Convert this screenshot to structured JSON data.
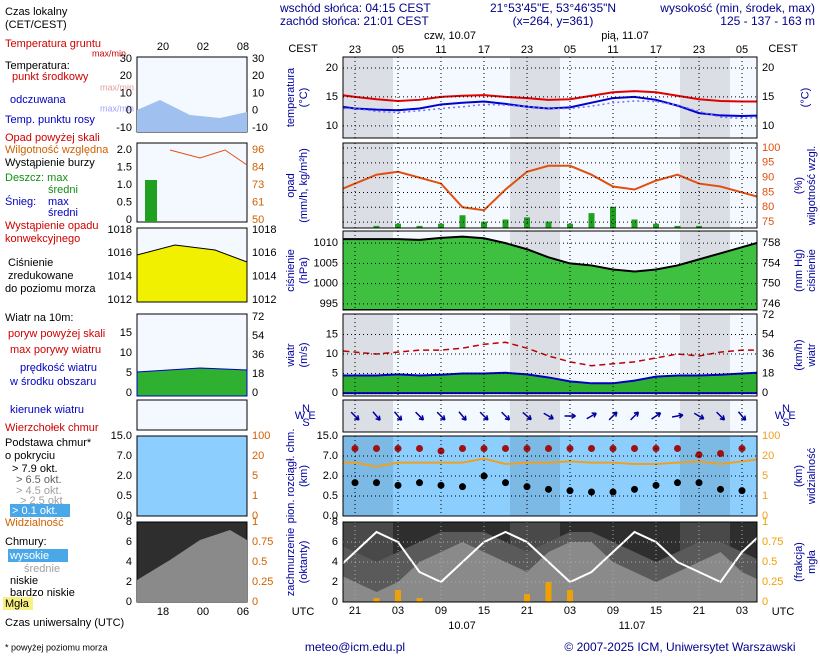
{
  "header": {
    "sunrise": "wschód słońca: 04:15 CEST",
    "sunset": "zachód słońca: 21:01 CEST",
    "coords": "21°53'45\"E, 53°46'35\"N",
    "grid": "(x=264, y=361)",
    "elev_title": "wysokość (min, środek, max)",
    "elev": "125 - 137 - 163 m"
  },
  "time": {
    "zone_top": "CEST",
    "zone_bottom": "UTC",
    "days_top": [
      "czw, 10.07",
      "pią, 11.07"
    ],
    "days_bottom": [
      "10.07",
      "11.07"
    ],
    "cest": [
      null,
      "23",
      null,
      "05",
      null,
      "11",
      null,
      "17",
      null,
      "23",
      null,
      "05",
      null,
      "11",
      null,
      "17",
      null,
      "23",
      null,
      "05",
      null
    ],
    "utc": [
      null,
      "21",
      null,
      "03",
      null,
      "09",
      null,
      "15",
      null,
      "21",
      null,
      "03",
      null,
      "09",
      null,
      "15",
      null,
      "21",
      null,
      "03",
      null
    ]
  },
  "footer": {
    "email": "meteo@icm.edu.pl",
    "copyright": "© 2007-2025 ICM, Uniwersytet Warszawski",
    "note": "* powyżej poziomu morza"
  },
  "legend": {
    "local_time": [
      "Czas lokalny",
      "(CET/CEST)"
    ],
    "hours_top": [
      "20",
      "02",
      "08"
    ],
    "hours_bottom": [
      "18",
      "00",
      "06"
    ],
    "utc_time": "Czas uniwersalny (UTC)",
    "items": [
      "Temperatura gruntu",
      "max/min",
      "Temperatura:",
      "punkt środkowy",
      "max/min",
      "odczuwana",
      "max/min",
      "Temp. punktu rosy",
      "Opad powyżej skali",
      "Wilgotność względna",
      "Wystąpienie burzy",
      "Deszcz: max",
      "średni",
      "Śnieg:",
      "max",
      "średni",
      "Wystąpienie opadu",
      "konwekcyjnego",
      "Ciśnienie",
      "zredukowane",
      "do poziomu morza",
      "Wiatr na 10m:",
      "poryw powyżej skali",
      "max porywy wiatru",
      "prędkość wiatru",
      "w środku obszaru",
      "kierunek wiatru",
      "Wierzchołek chmur",
      "Podstawa chmur*",
      "o pokryciu",
      "> 7.9 okt.",
      "> 6.5 okt.",
      "> 4.5 okt.",
      "> 2.5 okt",
      "> 0.1 okt.",
      "Widzialność",
      "Chmury:",
      "wysokie",
      "średnie",
      "niskie",
      "bardzo niskie",
      "Mgła"
    ],
    "panels": [
      {
        "left": [
          30,
          20,
          10,
          0,
          -10
        ],
        "right": [
          30,
          20,
          10,
          0,
          -10
        ]
      },
      {
        "left": [
          {
            "value": 2,
            "label": "2.0"
          },
          {
            "value": 1.5,
            "label": "1.5"
          },
          {
            "value": 1,
            "label": "1.0"
          },
          0.5,
          0
        ],
        "right": [
          96,
          84,
          73,
          61,
          50
        ]
      },
      {
        "left": [
          1018,
          1016,
          1014,
          1012
        ],
        "right": [
          1018,
          1016,
          1014,
          1012
        ]
      },
      {
        "left": [
          15,
          10,
          5,
          0
        ],
        "right": [
          72,
          54,
          36,
          18,
          0
        ]
      },
      {
        "left": [
          {
            "value": 15,
            "label": "15.0"
          },
          {
            "value": 7,
            "label": "7.0"
          },
          {
            "value": 2,
            "label": "2.0"
          },
          0.5,
          {
            "value": 0,
            "label": "0.0"
          }
        ],
        "right": [
          100,
          20,
          5,
          1,
          0
        ]
      },
      {
        "left": [
          8,
          6,
          4,
          2,
          0
        ],
        "right": [
          1,
          0.75,
          0.5,
          0.25,
          0
        ]
      }
    ]
  },
  "chart_data": [
    {
      "type": "line",
      "ylabel": [
        "temperatura",
        "(°C)"
      ],
      "y2label": [
        "(°C)"
      ],
      "ylim": [
        7.9,
        21.9
      ],
      "yticks": [
        20,
        15,
        10
      ],
      "y2lim": [
        7.9,
        21.9
      ],
      "y2ticks": [
        20,
        15,
        10
      ],
      "grid": true,
      "series": [
        {
          "mark": "line",
          "color": "#e00000",
          "values": [
            15.5,
            15,
            14.6,
            14.3,
            14.5,
            15,
            15.2,
            15.3,
            15,
            14.8,
            14.5,
            14.6,
            15.2,
            15.8,
            16,
            15.8,
            15.2,
            14.6,
            14.3,
            14.2,
            14.2
          ]
        },
        {
          "mark": "line",
          "color": "#0000d0",
          "values": [
            13.5,
            13,
            12.8,
            12.7,
            13,
            13.7,
            14,
            14.2,
            13.8,
            13.3,
            13,
            13.2,
            14,
            14.8,
            15,
            14.5,
            13.5,
            12.2,
            11.8,
            11.7,
            11.8
          ]
        },
        {
          "mark": "dotted",
          "color": "#7070ff",
          "values": [
            13,
            13,
            12.5,
            12.3,
            12.6,
            13,
            13.3,
            13.7,
            13.6,
            13.3,
            13,
            13,
            13.4,
            14,
            14.3,
            14.2,
            13.6,
            12.5,
            11.5,
            11.3,
            11.5
          ]
        }
      ]
    },
    {
      "type": "combo",
      "ylabel": [
        "opad",
        "(mm/h, kg/m²h)"
      ],
      "y2label": [
        "(%)",
        "wilgotność wzgl."
      ],
      "ylim": [
        0,
        2
      ],
      "y2lim": [
        73,
        101.7
      ],
      "y2ticks": [
        100,
        95,
        90,
        85,
        80,
        75
      ],
      "grid": true,
      "series": [
        {
          "mark": "bar",
          "color": "#20a020",
          "values": [
            0,
            0,
            0.05,
            0.1,
            0.05,
            0.1,
            0.3,
            0.15,
            0.2,
            0.25,
            0.15,
            0.1,
            0.35,
            0.5,
            0.2,
            0.1,
            0.05,
            0.05,
            0,
            0,
            0
          ]
        },
        {
          "mark": "line",
          "axis": "y2",
          "color": "#e05010",
          "values": [
            85,
            88,
            91,
            92,
            90,
            88,
            80,
            79,
            86,
            92,
            94,
            94,
            91,
            87,
            86,
            89,
            91,
            88,
            87,
            85,
            83
          ]
        }
      ]
    },
    {
      "type": "area",
      "ylabel": [
        "ciśnienie",
        "(hPa)"
      ],
      "y2label": [
        "(mm Hg)",
        "ciśnienie"
      ],
      "ylim": [
        993.5,
        1013
      ],
      "yticks": [
        1010,
        1005,
        1000,
        995
      ],
      "y2lim": [
        744.8,
        760.4
      ],
      "y2ticks": [
        758,
        754,
        750,
        746
      ],
      "grid": true,
      "series": [
        {
          "mark": "area",
          "color": "#40c040",
          "edge": "#000000",
          "values": [
            1011,
            1011,
            1011,
            1011,
            1010.8,
            1011.3,
            1011.6,
            1011.2,
            1010,
            1008.5,
            1006.5,
            1005,
            1004.5,
            1003.5,
            1003,
            1003.5,
            1004.5,
            1006,
            1007.5,
            1009,
            1010.5
          ]
        }
      ]
    },
    {
      "type": "area",
      "ylabel": [
        "wiatr",
        "(m/s)"
      ],
      "y2label": [
        "(km/h)",
        "wiatr"
      ],
      "ylim": [
        -0.75,
        20.25
      ],
      "yticks": [
        15,
        10,
        5,
        0
      ],
      "y2lim": [
        -2.7,
        72.9
      ],
      "y2ticks": [
        72,
        54,
        36,
        18,
        0
      ],
      "grid": true,
      "series": [
        {
          "mark": "area",
          "color": "#30b030",
          "edge": "#0000c0",
          "values": [
            4.5,
            4.5,
            4.5,
            4.8,
            4.5,
            4.7,
            5,
            5,
            5.2,
            4.8,
            4,
            3,
            2.5,
            2.5,
            3.2,
            4.2,
            4.5,
            4.5,
            4.7,
            5,
            5.3
          ]
        },
        {
          "mark": "dashed",
          "color": "#c00000",
          "values": [
            11,
            10.5,
            10,
            10.5,
            11,
            11,
            11.5,
            12.5,
            13,
            11.5,
            9.5,
            8,
            7,
            7.5,
            8,
            9,
            10,
            9.5,
            10.5,
            11,
            11
          ]
        }
      ]
    },
    {
      "type": "vector",
      "compass": [
        "N",
        "W",
        "E",
        "S"
      ],
      "grid": true,
      "series": [
        {
          "mark": "arrows",
          "color": "#0000a0",
          "values": [
            315,
            315,
            320,
            320,
            315,
            315,
            320,
            315,
            315,
            310,
            300,
            270,
            240,
            225,
            225,
            235,
            260,
            300,
            315,
            320,
            320
          ]
        }
      ]
    },
    {
      "type": "scatter",
      "yscale": "piecewise",
      "ylabel": [
        "pion. rozciągł. chm.",
        "(km)"
      ],
      "y2label": [
        "(km)",
        "widzialność"
      ],
      "ylim": [
        0,
        15
      ],
      "yticks": [
        {
          "value": 15,
          "label": "15.0"
        },
        {
          "value": 7,
          "label": "7.0"
        },
        {
          "value": 2,
          "label": "2.0"
        },
        0.5,
        {
          "value": 0,
          "label": "0.0"
        }
      ],
      "y2lim": [
        0,
        100
      ],
      "y2ticks": [
        100,
        20,
        5,
        1,
        0
      ],
      "grid": true,
      "series": [
        {
          "mark": "dots",
          "color": "#a01010",
          "values": [
            10,
            10,
            10,
            10,
            10,
            9,
            10,
            10,
            10,
            10,
            10,
            10,
            10,
            10,
            10,
            10,
            10,
            7.5,
            8,
            10,
            10
          ]
        },
        {
          "mark": "dots",
          "color": "#000000",
          "values": [
            1.5,
            1.5,
            1.5,
            1.3,
            1.5,
            1.3,
            1.2,
            2,
            1.5,
            1.2,
            1,
            0.9,
            0.8,
            0.8,
            1,
            1.3,
            1.5,
            1.5,
            1,
            0.9,
            0.8
          ]
        },
        {
          "mark": "line",
          "axis": "y2",
          "color": "#f0a020",
          "values": [
            15,
            15,
            12,
            15,
            15,
            15,
            15,
            18,
            14,
            15,
            15,
            16,
            15,
            15,
            14,
            14,
            15,
            16,
            14,
            16,
            18
          ]
        }
      ]
    },
    {
      "type": "area",
      "ylabel": [
        "zachmurzenie",
        "(oktanty)"
      ],
      "y2label": [
        "(frakcja)",
        "mgła"
      ],
      "ylim": [
        0,
        8
      ],
      "yticks": [
        8,
        6,
        4,
        2,
        0
      ],
      "y2lim": [
        0,
        1
      ],
      "y2ticks": [
        1,
        0.75,
        0.5,
        0.25,
        0
      ],
      "grid": true,
      "series": [
        {
          "mark": "area",
          "color": "#5a5a5a",
          "values": [
            6,
            5,
            4,
            5,
            6,
            7,
            7,
            7,
            6,
            5,
            6,
            7,
            7,
            6,
            5,
            4,
            5,
            6,
            6,
            5,
            4
          ]
        },
        {
          "mark": "area",
          "color": "#8a8a8a",
          "values": [
            3,
            2,
            1,
            2,
            4,
            5,
            6,
            5,
            4,
            3,
            5,
            6,
            6,
            4,
            3,
            2,
            3,
            4,
            5,
            3,
            2
          ]
        },
        {
          "mark": "line",
          "color": "#ffffff",
          "values": [
            3,
            5,
            7,
            6,
            3,
            2,
            4,
            6,
            7,
            6,
            4,
            2,
            3,
            5,
            7,
            6,
            4,
            3,
            2,
            5,
            7
          ]
        },
        {
          "mark": "bar",
          "axis": "y2",
          "color": "#f0a000",
          "values": [
            0,
            0,
            0.05,
            0.15,
            0.05,
            0,
            0,
            0,
            0,
            0.1,
            0.25,
            0.15,
            0,
            0,
            0,
            0,
            0,
            0,
            0,
            0,
            0
          ]
        }
      ]
    }
  ]
}
